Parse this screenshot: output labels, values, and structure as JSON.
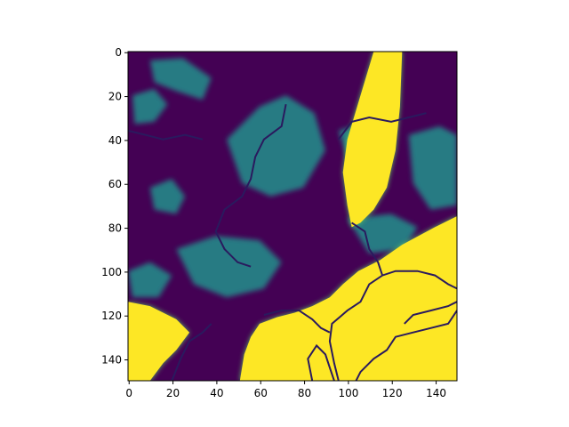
{
  "chart_data": {
    "type": "heatmap",
    "title": "",
    "xlabel": "",
    "ylabel": "",
    "xlim": [
      0,
      150
    ],
    "ylim": [
      150,
      0
    ],
    "y_axis_inverted": true,
    "grid": false,
    "legend": "none",
    "colormap": "viridis",
    "colormap_stops": [
      "#440154",
      "#3b528b",
      "#21918c",
      "#5ec962",
      "#fde725"
    ],
    "x_ticks": [
      0,
      20,
      40,
      60,
      80,
      100,
      120,
      140
    ],
    "y_ticks": [
      0,
      20,
      40,
      60,
      80,
      100,
      120,
      140
    ],
    "x_tick_labels": [
      "0",
      "20",
      "40",
      "60",
      "80",
      "100",
      "120",
      "140"
    ],
    "y_tick_labels": [
      "0",
      "20",
      "40",
      "60",
      "80",
      "100",
      "120",
      "140"
    ],
    "grid_size": [
      150,
      150
    ],
    "value_range": [
      0,
      1
    ],
    "regions_description_note": "",
    "yellow_regions": [
      {
        "shape": "coast-south-east",
        "points": [
          [
            150,
            75
          ],
          [
            140,
            80
          ],
          [
            125,
            88
          ],
          [
            115,
            95
          ],
          [
            105,
            100
          ],
          [
            98,
            106
          ],
          [
            92,
            112
          ],
          [
            84,
            116
          ],
          [
            76,
            119
          ],
          [
            68,
            121
          ],
          [
            60,
            124
          ],
          [
            56,
            130
          ],
          [
            53,
            138
          ],
          [
            51,
            150
          ],
          [
            150,
            150
          ]
        ]
      },
      {
        "shape": "north-east-band",
        "points": [
          [
            112,
            0
          ],
          [
            125,
            0
          ],
          [
            124,
            25
          ],
          [
            122,
            45
          ],
          [
            118,
            62
          ],
          [
            112,
            72
          ],
          [
            106,
            78
          ],
          [
            102,
            80
          ],
          [
            100,
            70
          ],
          [
            98,
            55
          ],
          [
            100,
            40
          ],
          [
            106,
            20
          ]
        ]
      },
      {
        "shape": "south-west-corner",
        "points": [
          [
            0,
            114
          ],
          [
            10,
            116
          ],
          [
            22,
            122
          ],
          [
            28,
            128
          ],
          [
            22,
            136
          ],
          [
            16,
            142
          ],
          [
            10,
            150
          ],
          [
            0,
            150
          ]
        ]
      }
    ],
    "teal_patches": [
      {
        "points": [
          [
            2,
            20
          ],
          [
            12,
            17
          ],
          [
            18,
            24
          ],
          [
            12,
            32
          ],
          [
            3,
            33
          ]
        ]
      },
      {
        "points": [
          [
            10,
            4
          ],
          [
            25,
            3
          ],
          [
            38,
            12
          ],
          [
            34,
            22
          ],
          [
            22,
            18
          ],
          [
            12,
            14
          ]
        ]
      },
      {
        "points": [
          [
            45,
            40
          ],
          [
            60,
            25
          ],
          [
            72,
            20
          ],
          [
            85,
            28
          ],
          [
            90,
            45
          ],
          [
            80,
            62
          ],
          [
            65,
            66
          ],
          [
            52,
            60
          ]
        ]
      },
      {
        "points": [
          [
            10,
            62
          ],
          [
            20,
            58
          ],
          [
            26,
            66
          ],
          [
            22,
            74
          ],
          [
            12,
            72
          ]
        ]
      },
      {
        "points": [
          [
            22,
            90
          ],
          [
            40,
            84
          ],
          [
            60,
            86
          ],
          [
            70,
            96
          ],
          [
            62,
            108
          ],
          [
            45,
            112
          ],
          [
            30,
            106
          ]
        ]
      },
      {
        "points": [
          [
            96,
            36
          ],
          [
            110,
            32
          ],
          [
            118,
            40
          ],
          [
            114,
            52
          ],
          [
            102,
            55
          ]
        ]
      },
      {
        "points": [
          [
            128,
            38
          ],
          [
            142,
            34
          ],
          [
            150,
            38
          ],
          [
            150,
            70
          ],
          [
            138,
            72
          ],
          [
            130,
            60
          ]
        ]
      },
      {
        "points": [
          [
            100,
            76
          ],
          [
            120,
            74
          ],
          [
            132,
            80
          ],
          [
            126,
            90
          ],
          [
            110,
            92
          ]
        ]
      },
      {
        "points": [
          [
            0,
            100
          ],
          [
            10,
            96
          ],
          [
            20,
            102
          ],
          [
            14,
            112
          ],
          [
            2,
            112
          ]
        ]
      }
    ],
    "border_lines": [
      [
        [
          96,
          150
        ],
        [
          94,
          142
        ],
        [
          92,
          132
        ],
        [
          93,
          124
        ],
        [
          100,
          118
        ],
        [
          106,
          114
        ],
        [
          110,
          106
        ],
        [
          116,
          102
        ],
        [
          122,
          100
        ],
        [
          132,
          100
        ],
        [
          140,
          102
        ],
        [
          146,
          106
        ],
        [
          150,
          108
        ]
      ],
      [
        [
          150,
          118
        ],
        [
          146,
          124
        ],
        [
          138,
          126
        ],
        [
          130,
          128
        ],
        [
          122,
          130
        ],
        [
          118,
          136
        ],
        [
          112,
          140
        ],
        [
          106,
          146
        ],
        [
          104,
          150
        ]
      ],
      [
        [
          84,
          150
        ],
        [
          82,
          140
        ],
        [
          86,
          134
        ],
        [
          90,
          138
        ],
        [
          92,
          144
        ],
        [
          94,
          150
        ]
      ],
      [
        [
          62,
          120
        ],
        [
          70,
          118
        ],
        [
          78,
          118
        ],
        [
          84,
          122
        ],
        [
          88,
          126
        ],
        [
          92,
          128
        ]
      ],
      [
        [
          102,
          78
        ],
        [
          108,
          82
        ],
        [
          110,
          90
        ],
        [
          114,
          96
        ],
        [
          116,
          102
        ]
      ],
      [
        [
          96,
          40
        ],
        [
          102,
          32
        ],
        [
          110,
          30
        ],
        [
          120,
          32
        ],
        [
          128,
          30
        ],
        [
          136,
          28
        ]
      ],
      [
        [
          72,
          24
        ],
        [
          70,
          34
        ],
        [
          62,
          40
        ],
        [
          58,
          48
        ],
        [
          56,
          58
        ],
        [
          52,
          66
        ],
        [
          44,
          72
        ],
        [
          40,
          82
        ],
        [
          44,
          90
        ],
        [
          50,
          96
        ],
        [
          56,
          98
        ]
      ],
      [
        [
          0,
          36
        ],
        [
          8,
          38
        ],
        [
          16,
          40
        ],
        [
          26,
          38
        ],
        [
          34,
          40
        ]
      ],
      [
        [
          20,
          150
        ],
        [
          24,
          140
        ],
        [
          28,
          132
        ],
        [
          34,
          128
        ],
        [
          38,
          124
        ]
      ],
      [
        [
          126,
          124
        ],
        [
          130,
          120
        ],
        [
          138,
          118
        ],
        [
          146,
          116
        ],
        [
          150,
          114
        ]
      ]
    ]
  }
}
